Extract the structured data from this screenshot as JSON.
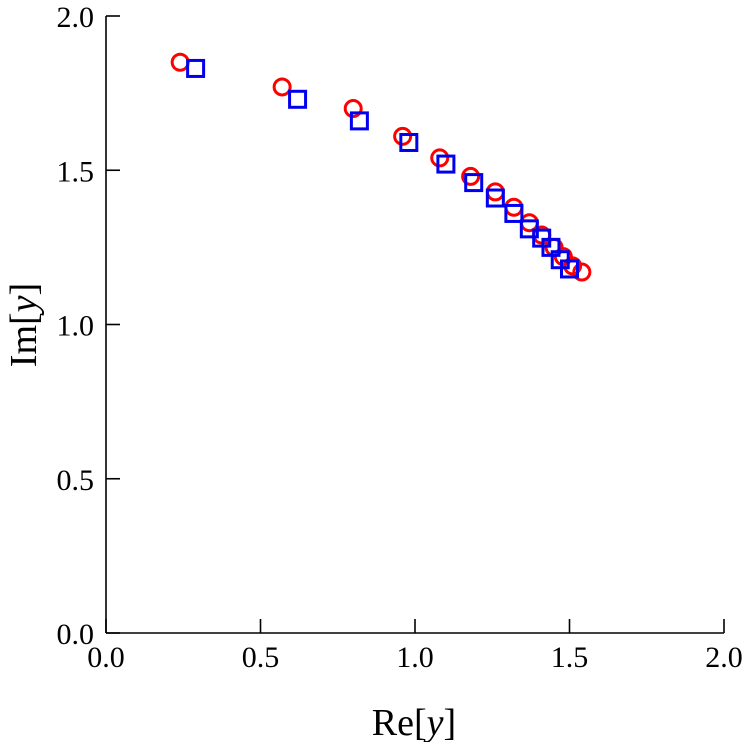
{
  "chart_data": {
    "type": "scatter",
    "xlabel": {
      "prefix": "Re[",
      "var": "y",
      "suffix": "]"
    },
    "ylabel": {
      "prefix": "Im[",
      "var": "y",
      "suffix": "]"
    },
    "xlim": [
      0.0,
      2.0
    ],
    "ylim": [
      0.0,
      2.0
    ],
    "xticks": [
      "0.0",
      "0.5",
      "1.0",
      "1.5",
      "2.0"
    ],
    "yticks": [
      "0.0",
      "0.5",
      "1.0",
      "1.5",
      "2.0"
    ],
    "grid": false,
    "series": [
      {
        "marker": "circle",
        "color": "#ff0000",
        "points": [
          [
            0.24,
            1.85
          ],
          [
            0.57,
            1.77
          ],
          [
            0.8,
            1.7
          ],
          [
            0.96,
            1.61
          ],
          [
            1.08,
            1.54
          ],
          [
            1.18,
            1.48
          ],
          [
            1.26,
            1.43
          ],
          [
            1.32,
            1.38
          ],
          [
            1.37,
            1.33
          ],
          [
            1.41,
            1.29
          ],
          [
            1.45,
            1.25
          ],
          [
            1.48,
            1.22
          ],
          [
            1.51,
            1.19
          ],
          [
            1.54,
            1.17
          ]
        ]
      },
      {
        "marker": "square",
        "color": "#0000ee",
        "points": [
          [
            0.29,
            1.83
          ],
          [
            0.62,
            1.73
          ],
          [
            0.82,
            1.66
          ],
          [
            0.98,
            1.59
          ],
          [
            1.1,
            1.52
          ],
          [
            1.19,
            1.46
          ],
          [
            1.26,
            1.41
          ],
          [
            1.32,
            1.36
          ],
          [
            1.37,
            1.31
          ],
          [
            1.41,
            1.28
          ],
          [
            1.44,
            1.25
          ],
          [
            1.47,
            1.21
          ],
          [
            1.5,
            1.18
          ]
        ]
      }
    ]
  }
}
